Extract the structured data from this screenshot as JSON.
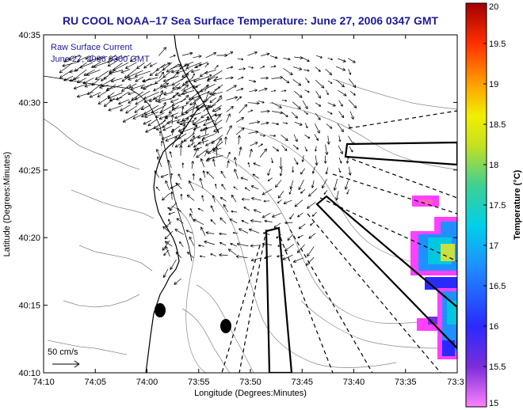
{
  "chart_data": {
    "type": "other",
    "title": "RU COOL   NOAA–17  Sea Surface Temperature:  June 27, 2006 0347 GMT",
    "xlabel": "Longitude (Degrees:Minutes)",
    "ylabel": "Latitude (Degrees:Minutes)",
    "x_ticks": [
      "74:10",
      "74:05",
      "74:00",
      "73:55",
      "73:50",
      "73:45",
      "73:40",
      "73:35",
      "73:3"
    ],
    "y_ticks": [
      "40:10",
      "40:15",
      "40:20",
      "40:25",
      "40:30",
      "40:35"
    ],
    "inset_line1": "Raw Surface Current",
    "inset_line2": "June 27, 2006 0300 GMT",
    "scale_label": "50 cm/s",
    "colorbar": {
      "label": "Temperature (°C)",
      "min": 15,
      "max": 20,
      "ticks": [
        "20",
        "19.5",
        "19",
        "18.5",
        "18",
        "17.5",
        "17",
        "16.5",
        "16",
        "15.5",
        "15"
      ]
    }
  }
}
